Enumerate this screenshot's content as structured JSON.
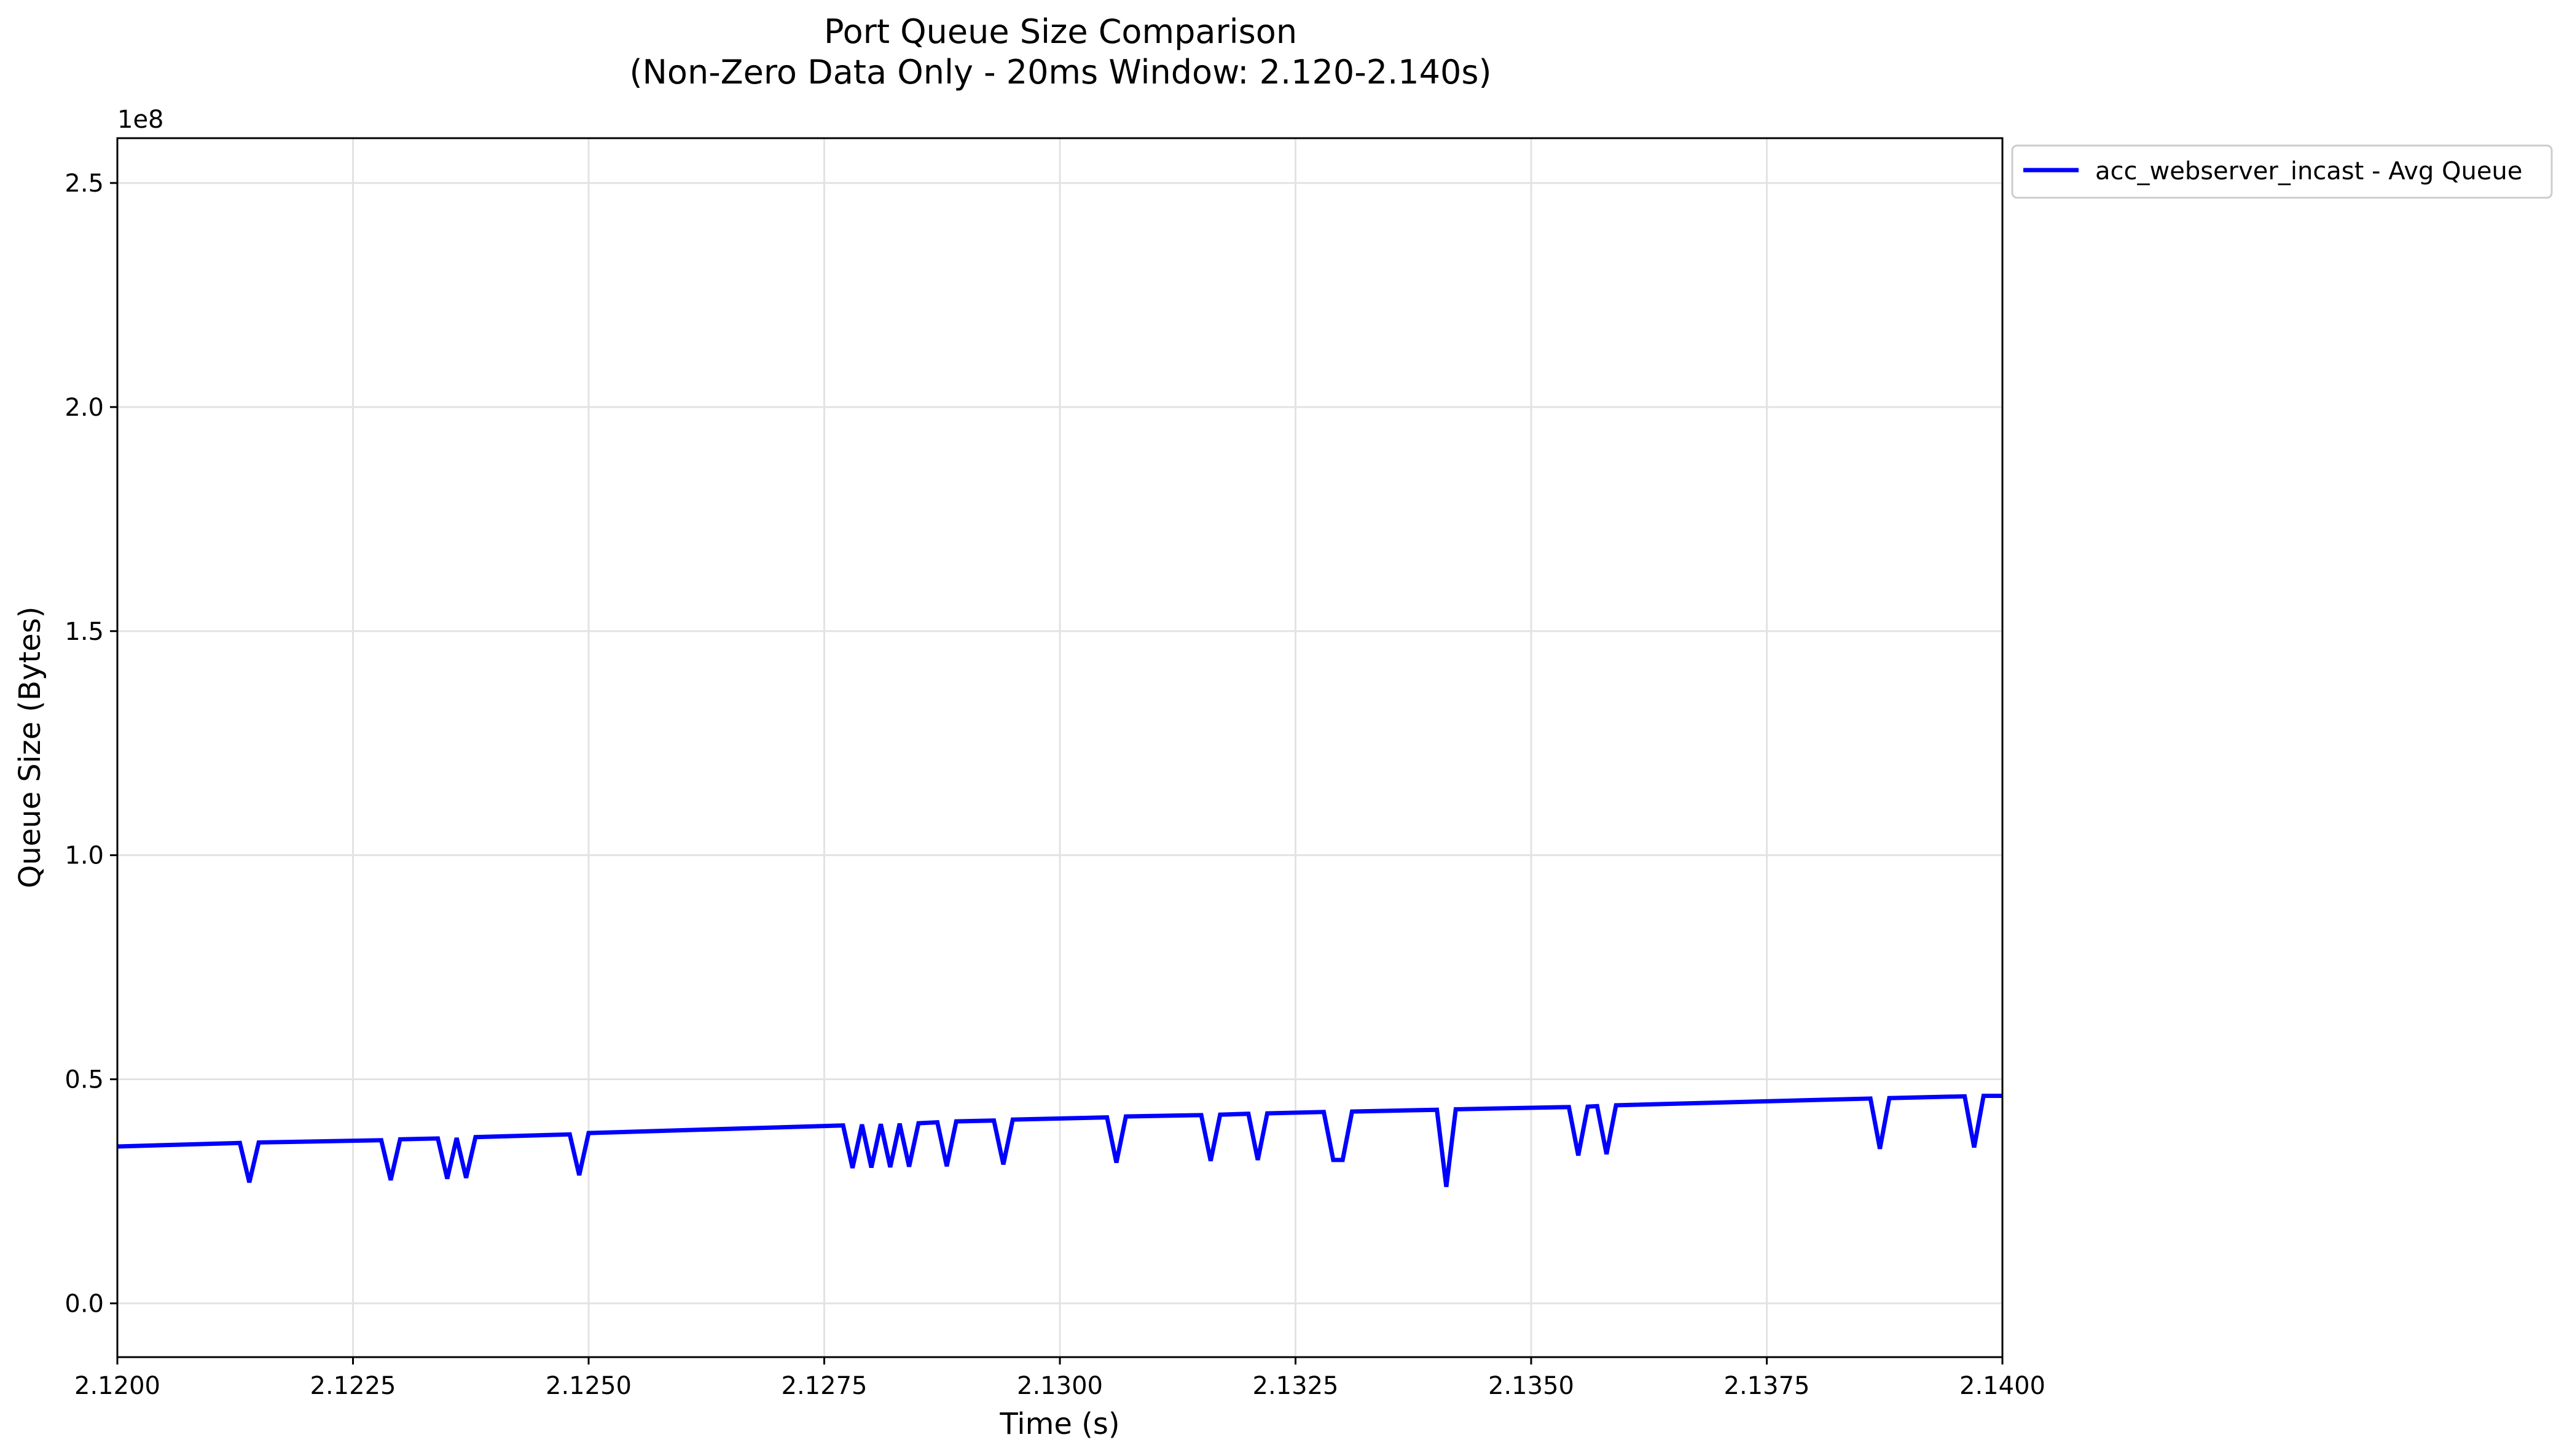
{
  "chart_data": {
    "type": "line",
    "title": "Port Queue Size Comparison",
    "subtitle": "(Non-Zero Data Only - 20ms Window: 2.120-2.140s)",
    "xlabel": "Time (s)",
    "ylabel": "Queue Size (Bytes)",
    "y_offset_label": "1e8",
    "xlim": [
      2.12,
      2.14
    ],
    "ylim": [
      -12000000,
      260000000
    ],
    "x_ticks": [
      2.12,
      2.1225,
      2.125,
      2.1275,
      2.13,
      2.1325,
      2.135,
      2.1375,
      2.14
    ],
    "x_tick_labels": [
      "2.1200",
      "2.1225",
      "2.1250",
      "2.1275",
      "2.1300",
      "2.1325",
      "2.1350",
      "2.1375",
      "2.1400"
    ],
    "y_ticks": [
      0,
      50000000,
      100000000,
      150000000,
      200000000,
      250000000
    ],
    "y_tick_labels": [
      "0.0",
      "0.5",
      "1.0",
      "1.5",
      "2.0",
      "2.5"
    ],
    "grid": true,
    "legend_position": "outside-top-right",
    "series": [
      {
        "name": "acc_webserver_incast - Avg Queue",
        "color": "#0000ff",
        "x": [
          2.12,
          2.1213,
          2.1214,
          2.1215,
          2.1228,
          2.1229,
          2.123,
          2.1234,
          2.1235,
          2.1236,
          2.1237,
          2.1238,
          2.1248,
          2.1249,
          2.125,
          2.1277,
          2.1278,
          2.1279,
          2.128,
          2.1281,
          2.1282,
          2.1283,
          2.1284,
          2.1285,
          2.1287,
          2.1288,
          2.1289,
          2.1293,
          2.1294,
          2.1295,
          2.1305,
          2.1306,
          2.1307,
          2.1315,
          2.1316,
          2.1317,
          2.132,
          2.1321,
          2.1322,
          2.1328,
          2.1329,
          2.133,
          2.1331,
          2.134,
          2.1341,
          2.1342,
          2.1354,
          2.1355,
          2.1356,
          2.1357,
          2.1358,
          2.1359,
          2.1386,
          2.1387,
          2.1388,
          2.1396,
          2.1397,
          2.1398,
          2.14
        ],
        "y": [
          35000000,
          35800000,
          27000000,
          35900000,
          36400000,
          27500000,
          36600000,
          36800000,
          27800000,
          36900000,
          28000000,
          37100000,
          37700000,
          28600000,
          38000000,
          39700000,
          30200000,
          39900000,
          30300000,
          40000000,
          30400000,
          40100000,
          30500000,
          40200000,
          40400000,
          30600000,
          40600000,
          40800000,
          31000000,
          41000000,
          41500000,
          31400000,
          41700000,
          42000000,
          31800000,
          42100000,
          42300000,
          32000000,
          42400000,
          42700000,
          32000000,
          32000000,
          42800000,
          43200000,
          26000000,
          43300000,
          43800000,
          33000000,
          43900000,
          44000000,
          33300000,
          44200000,
          45700000,
          34500000,
          45800000,
          46200000,
          34800000,
          46300000,
          46300000
        ]
      }
    ]
  }
}
